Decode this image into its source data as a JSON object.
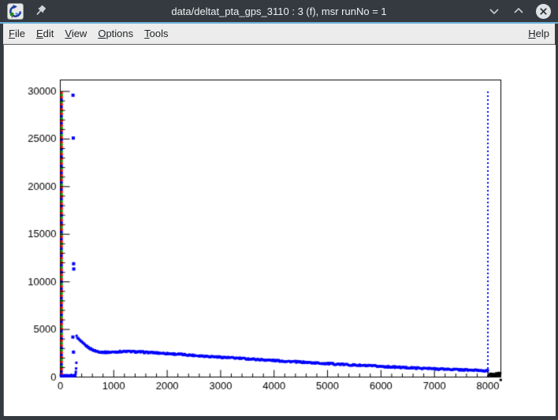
{
  "window": {
    "title": "data/deltat_pta_gps_3110 : 3 (f), msr runNo = 1",
    "app_icon": "root-framework-logo",
    "pin_icon": "keep-above-pin",
    "buttons": {
      "minimize": "chevron-down",
      "maximize": "chevron-up",
      "close": "x-circle"
    }
  },
  "menu_bar": {
    "items": [
      {
        "label": "File"
      },
      {
        "label": "Edit"
      },
      {
        "label": "View"
      },
      {
        "label": "Options"
      },
      {
        "label": "Tools"
      }
    ],
    "right_items": [
      {
        "label": "Help"
      }
    ],
    "mnemonic": "first-letter-underlined"
  },
  "chart_data": {
    "type": "scatter",
    "title": "data/deltat_pta_gps_3110 : 3 (f), msr runNo = 1",
    "xlabel": "",
    "ylabel": "",
    "xlim": [
      0,
      8243
    ],
    "ylim": [
      0,
      31200
    ],
    "x_ticks": [
      0,
      1000,
      2000,
      3000,
      4000,
      5000,
      6000,
      7000,
      8000
    ],
    "y_ticks": [
      0,
      5000,
      10000,
      15000,
      20000,
      25000,
      30000
    ],
    "x_minor_step": 200,
    "y_minor_step": 1000,
    "grid": false,
    "legend": "none",
    "marker_color": "#0000ff",
    "series": {
      "decay_band": {
        "comment": "dense blue square markers, slowly decaying muon-decay histogram",
        "color": "#0000ff",
        "marker": "square",
        "x_start": 305,
        "x_end": 8010,
        "x_step": 15,
        "jitter": 80,
        "envelope": [
          [
            305,
            4280
          ],
          [
            320,
            4150
          ],
          [
            340,
            4000
          ],
          [
            365,
            3850
          ],
          [
            395,
            3680
          ],
          [
            430,
            3500
          ],
          [
            470,
            3330
          ],
          [
            510,
            3170
          ],
          [
            550,
            3030
          ],
          [
            590,
            2900
          ],
          [
            630,
            2800
          ],
          [
            670,
            2720
          ],
          [
            720,
            2660
          ],
          [
            780,
            2620
          ],
          [
            850,
            2600
          ],
          [
            950,
            2610
          ],
          [
            1050,
            2650
          ],
          [
            1150,
            2680
          ],
          [
            1250,
            2690
          ],
          [
            1350,
            2670
          ],
          [
            1450,
            2640
          ],
          [
            1600,
            2600
          ],
          [
            1800,
            2540
          ],
          [
            2000,
            2470
          ],
          [
            2200,
            2400
          ],
          [
            2400,
            2320
          ],
          [
            2600,
            2240
          ],
          [
            2800,
            2170
          ],
          [
            3000,
            2090
          ],
          [
            3200,
            2020
          ],
          [
            3400,
            1950
          ],
          [
            3600,
            1880
          ],
          [
            3800,
            1810
          ],
          [
            4000,
            1740
          ],
          [
            4200,
            1670
          ],
          [
            4400,
            1600
          ],
          [
            4600,
            1540
          ],
          [
            4800,
            1470
          ],
          [
            5000,
            1410
          ],
          [
            5200,
            1350
          ],
          [
            5400,
            1290
          ],
          [
            5600,
            1230
          ],
          [
            5800,
            1170
          ],
          [
            6000,
            1120
          ],
          [
            6200,
            1060
          ],
          [
            6400,
            1010
          ],
          [
            6600,
            960
          ],
          [
            6800,
            915
          ],
          [
            7000,
            870
          ],
          [
            7200,
            830
          ],
          [
            7400,
            790
          ],
          [
            7600,
            745
          ],
          [
            7800,
            705
          ],
          [
            8010,
            665
          ]
        ]
      },
      "pre_t0_points": {
        "comment": "low flat background counts before t0",
        "color": "#0000ff",
        "marker": "square",
        "x_start": 8,
        "x_end": 282,
        "x_step": 8,
        "y_level": 140,
        "jitter": 70
      },
      "ramp_points": {
        "color": "#0000ff",
        "marker": "square",
        "points": [
          [
            286,
            320
          ],
          [
            291,
            560
          ],
          [
            296,
            900
          ],
          [
            301,
            1500
          ]
        ]
      },
      "outliers": {
        "comment": "prompt-peak bins near t0",
        "color": "#0000ff",
        "marker": "square",
        "points": [
          [
            238,
            29600
          ],
          [
            243,
            25100
          ],
          [
            249,
            11900
          ],
          [
            252,
            11350
          ],
          [
            235,
            4200
          ],
          [
            247,
            2620
          ]
        ]
      },
      "end_cluster": {
        "comment": "bins past last-good-data marker, drawn black",
        "color": "#000000",
        "marker": "square",
        "x_start": 8025,
        "x_end": 8235,
        "x_step": 9,
        "y_base": 110,
        "y_spread": 330
      },
      "stray_points": {
        "color": "#000000",
        "marker": "square",
        "points": [
          [
            8240,
            -300
          ]
        ]
      }
    },
    "vlines": [
      {
        "name": "t0-marker",
        "x": 25,
        "y0": 0,
        "y1": 30000,
        "style": "dashed-multicolor",
        "colors": [
          "#ff0000",
          "#00a000",
          "#ff0000",
          "#0000ff",
          "#00a000",
          "#ff0000",
          "#0000ff"
        ]
      },
      {
        "name": "data-range-end-marker",
        "x": 8000,
        "y0": 0,
        "y1": 30000,
        "style": "dotted",
        "colors": [
          "#0000ff"
        ]
      }
    ]
  }
}
